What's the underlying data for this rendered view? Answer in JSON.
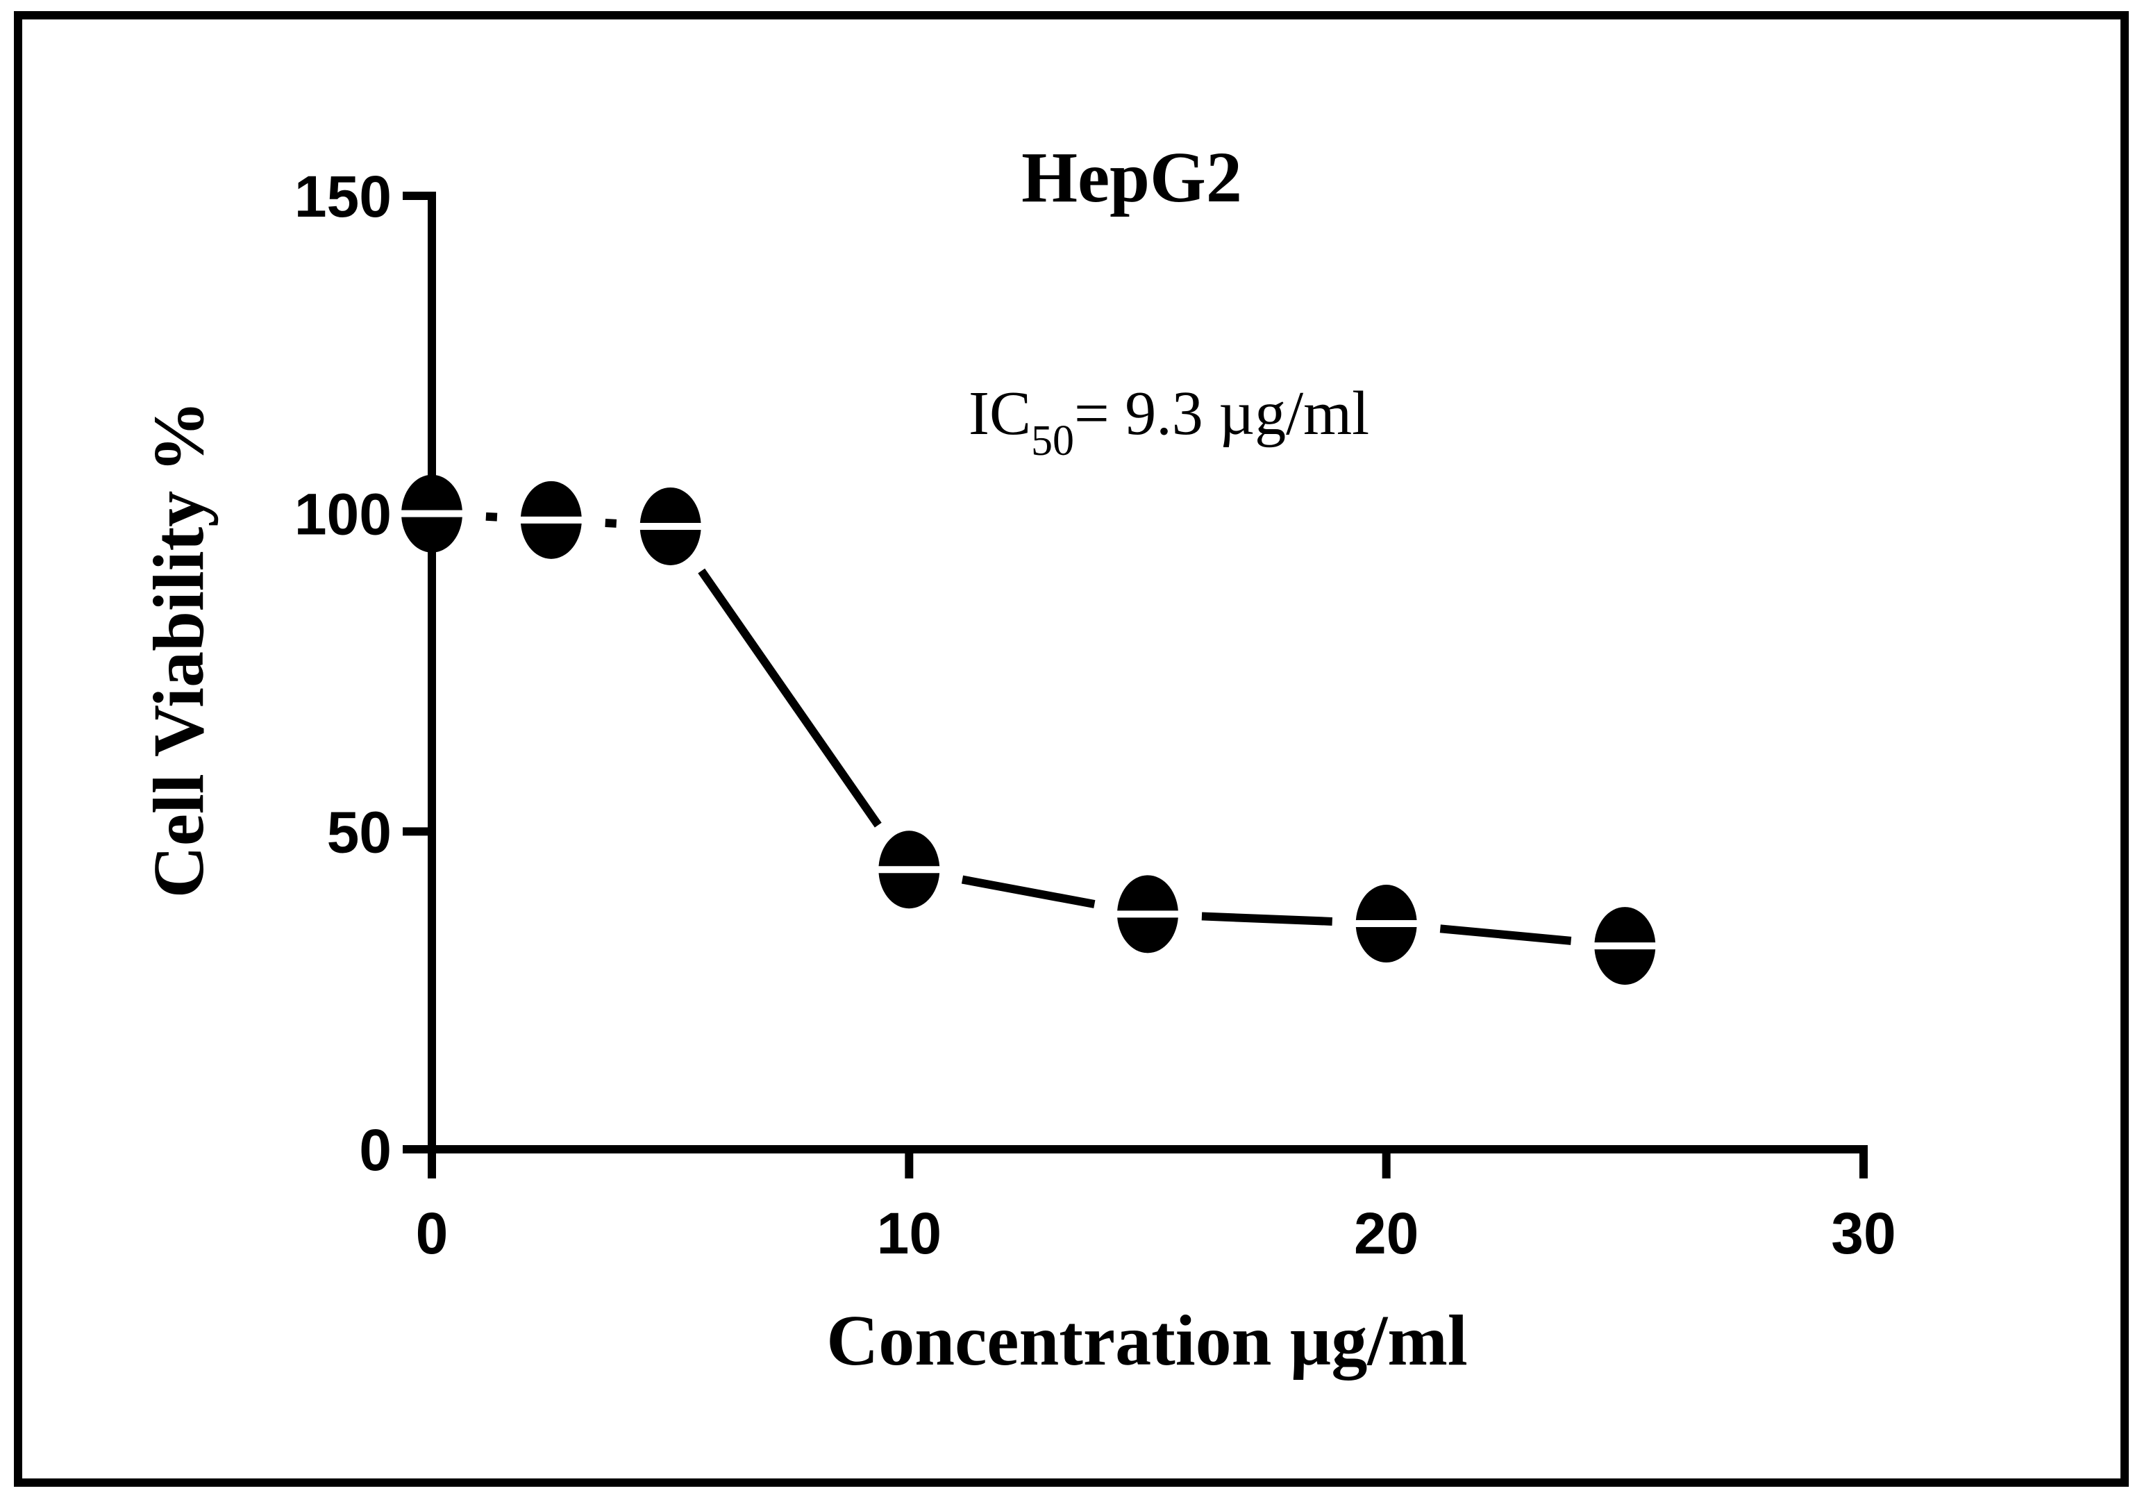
{
  "chart_data": {
    "type": "line",
    "title": "HepG2",
    "xlabel": "Concentration µg/ml",
    "ylabel": "Cell Viability %",
    "xlim": [
      0,
      30
    ],
    "ylim": [
      0,
      150
    ],
    "x_ticks": [
      0,
      10,
      20,
      30
    ],
    "y_ticks": [
      0,
      50,
      100,
      150
    ],
    "grid": false,
    "legend": null,
    "annotation": {
      "text_main": "IC",
      "text_sub": "50",
      "text_rest": "= 9.3 µg/ml"
    },
    "series": [
      {
        "name": "HepG2",
        "x": [
          0,
          2.5,
          5,
          10,
          15,
          20,
          25
        ],
        "values": [
          100,
          99,
          98,
          44,
          37,
          35.5,
          32
        ],
        "marker": "filled-circle",
        "color": "#000000"
      }
    ]
  }
}
